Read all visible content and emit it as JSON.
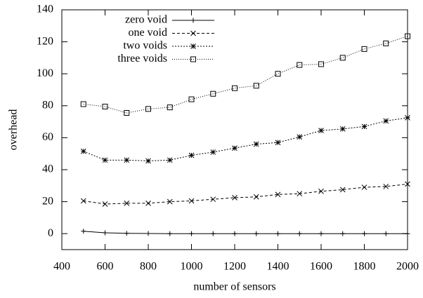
{
  "chart_data": {
    "type": "line",
    "xlabel": "number of sensors",
    "ylabel": "overhead",
    "x": [
      500,
      600,
      700,
      800,
      900,
      1000,
      1100,
      1200,
      1300,
      1400,
      1500,
      1600,
      1700,
      1800,
      1900,
      2000
    ],
    "series": [
      {
        "name": "zero void",
        "color": "#000000",
        "marker": "plus",
        "dash": "none",
        "values": [
          1.5,
          0.5,
          0.2,
          0.1,
          0,
          0,
          0,
          0,
          0,
          0,
          0,
          0,
          0,
          0,
          0,
          0
        ]
      },
      {
        "name": "one void",
        "color": "#000000",
        "marker": "cross",
        "dash": "4,3",
        "values": [
          20.5,
          18.5,
          19,
          19,
          20,
          20.5,
          21.5,
          22.5,
          23,
          24.5,
          25,
          26.5,
          27.5,
          29,
          29.5,
          31
        ]
      },
      {
        "name": "two voids",
        "color": "#000000",
        "marker": "star",
        "dash": "2,2",
        "values": [
          51.5,
          46,
          46,
          45.5,
          46,
          49,
          51,
          53.5,
          56,
          57,
          60.5,
          64.5,
          65.5,
          67,
          70.5,
          72.5
        ]
      },
      {
        "name": "three voids",
        "color": "#000000",
        "marker": "square",
        "dash": "1,2",
        "values": [
          81,
          79.5,
          75.5,
          78,
          79,
          84,
          87.5,
          91,
          92.5,
          100,
          105.5,
          106,
          110,
          115.5,
          119,
          123.5
        ]
      }
    ],
    "xlim": [
      400,
      2000
    ],
    "xticks": [
      400,
      600,
      800,
      1000,
      1200,
      1400,
      1600,
      1800,
      2000
    ],
    "ylim": [
      -10,
      140
    ],
    "yticks": [
      0,
      20,
      40,
      60,
      80,
      100,
      120,
      140
    ],
    "legend": "top-left"
  }
}
